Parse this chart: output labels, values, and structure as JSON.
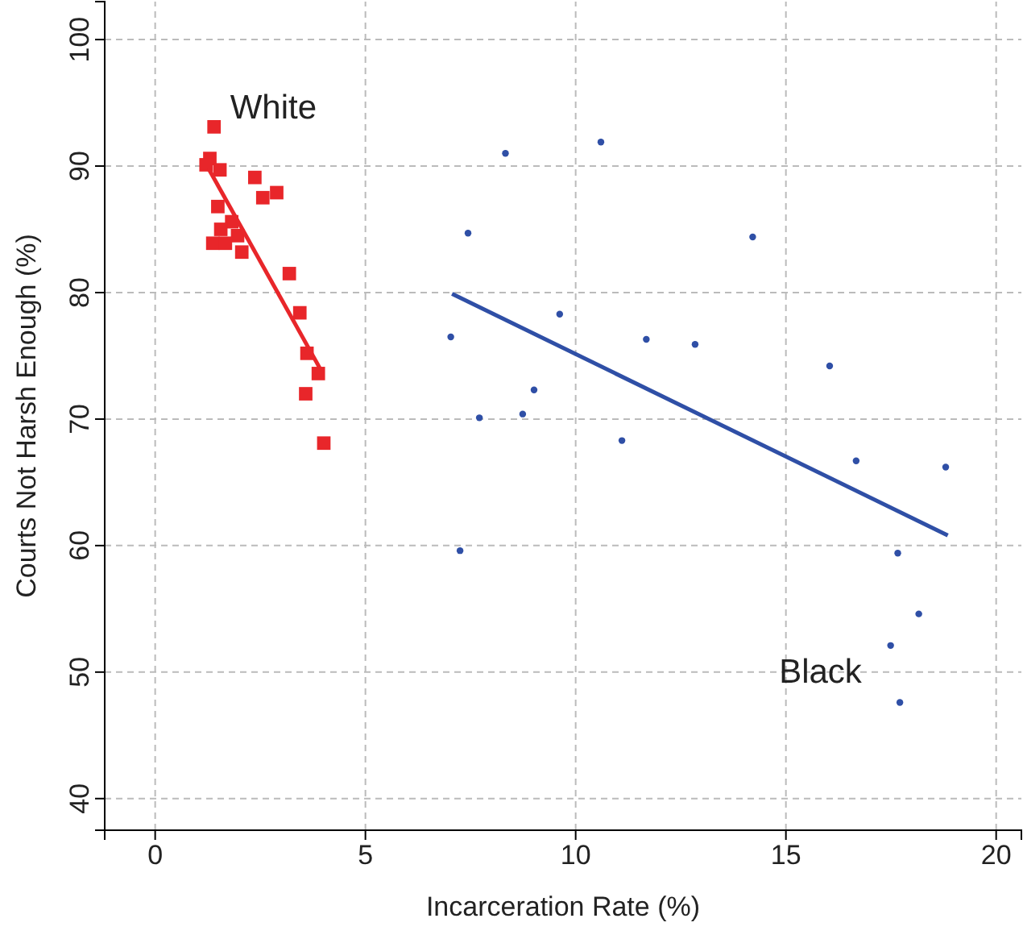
{
  "chart_data": {
    "type": "scatter",
    "xlabel": "Incarceration Rate (%)",
    "ylabel": "Courts Not Harsh Enough (%)",
    "xlim": [
      -1.2,
      20.6
    ],
    "ylim": [
      37.5,
      103
    ],
    "xticks": [
      0,
      5,
      10,
      15,
      20
    ],
    "yticks": [
      40,
      50,
      60,
      70,
      80,
      90,
      100
    ],
    "grid": true,
    "series": [
      {
        "name": "White",
        "color": "#e8262a",
        "marker": "square",
        "x": [
          1.4,
          1.3,
          1.21,
          1.54,
          2.37,
          2.89,
          2.56,
          1.49,
          1.82,
          1.56,
          1.96,
          1.37,
          1.67,
          2.06,
          3.19,
          3.44,
          3.61,
          3.88,
          3.58,
          4.01
        ],
        "values": [
          93.1,
          90.6,
          90.1,
          89.7,
          89.1,
          87.9,
          87.5,
          86.8,
          85.6,
          85.0,
          84.5,
          83.9,
          83.9,
          83.2,
          81.5,
          78.4,
          75.2,
          73.6,
          72.0,
          68.1
        ]
      },
      {
        "name": "Black",
        "color": "#2f4fa6",
        "marker": "circle",
        "x": [
          7.03,
          7.44,
          8.33,
          10.6,
          7.25,
          7.71,
          8.74,
          9.01,
          9.62,
          11.1,
          11.68,
          12.84,
          14.21,
          16.04,
          16.67,
          18.8,
          17.66,
          18.16,
          17.49,
          17.71
        ],
        "values": [
          76.5,
          84.7,
          91.0,
          91.9,
          59.6,
          70.1,
          70.4,
          72.3,
          78.3,
          68.3,
          76.3,
          75.9,
          84.4,
          74.2,
          66.7,
          66.2,
          59.4,
          54.6,
          52.1,
          47.6
        ]
      },
      {
        "type": "line",
        "color": "#e8262a",
        "x": [
          1.27,
          3.92
        ],
        "values": [
          89.8,
          74.0
        ]
      },
      {
        "type": "line",
        "color": "#2f4fa6",
        "x": [
          7.06,
          18.85
        ],
        "values": [
          79.9,
          60.8
        ]
      }
    ]
  }
}
